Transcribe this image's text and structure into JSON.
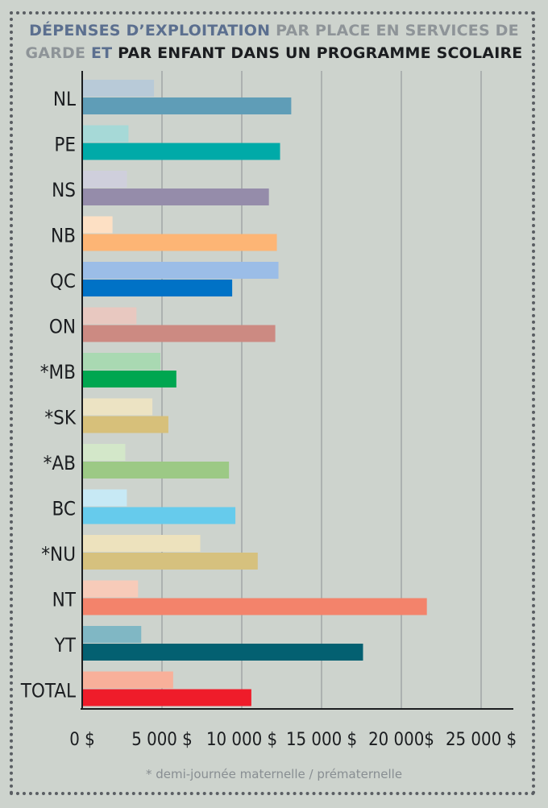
{
  "title": {
    "part1": "DÉPENSES D’EXPLOITATION",
    "part2": " PAR PLACE EN SERVICES DE GARDE ",
    "part3": "ET",
    "part4": " PAR ENFANT DANS UN PROGRAMME SCOLAIRE",
    "color1": "#5b6f8f",
    "color2": "#8e9498",
    "color3": "#5b6f8f",
    "color4": "#1b1d20"
  },
  "footnote": "* demi-journée maternelle / prématernelle",
  "chart_data": {
    "type": "bar",
    "orientation": "horizontal",
    "categories": [
      "NL",
      "PE",
      "NS",
      "NB",
      "QC",
      "ON",
      "*MB",
      "*SK",
      "*AB",
      "BC",
      "*NU",
      "NT",
      "YT",
      "TOTAL"
    ],
    "series": [
      {
        "values": [
          4500,
          2900,
          2800,
          1900,
          12300,
          3400,
          4900,
          4400,
          2700,
          2800,
          7400,
          3500,
          3700,
          5700
        ]
      },
      {
        "values": [
          13100,
          12400,
          11700,
          12200,
          9400,
          12100,
          5900,
          5400,
          9200,
          9600,
          11000,
          21600,
          17600,
          10600
        ]
      }
    ],
    "colors_light": [
      "#b8cad8",
      "#a6d9d7",
      "#cfcfdc",
      "#fde0c4",
      "#9bbde7",
      "#e8c8c0",
      "#a9d9b2",
      "#ece3c3",
      "#d3e7c9",
      "#c7e9f5",
      "#ede2bd",
      "#f7cbb9",
      "#80b7c4",
      "#f8b09a"
    ],
    "colors_dark": [
      "#5f9db7",
      "#00aaa8",
      "#958caa",
      "#fdb575",
      "#0072c6",
      "#cc8a82",
      "#00a650",
      "#d7c07a",
      "#9cc985",
      "#66cbec",
      "#d6c17e",
      "#f3836b",
      "#036071",
      "#ef1c2a"
    ],
    "xlim": [
      0,
      25000
    ],
    "xticks": [
      0,
      5000,
      10000,
      15000,
      20000,
      25000
    ],
    "xtick_labels": [
      "0 $",
      "5 000 $",
      "10 000 $",
      "15 000 $",
      "20 000$",
      "25 000 $"
    ],
    "grid": true,
    "xlabel": "",
    "ylabel": ""
  }
}
